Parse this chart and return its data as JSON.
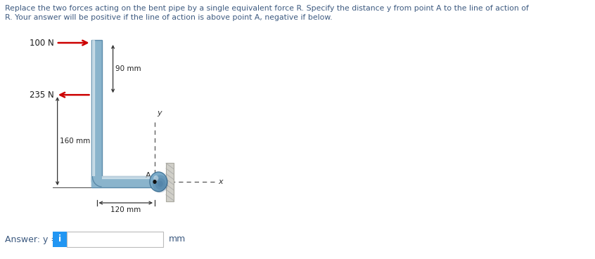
{
  "title_line1": "Replace the two forces acting on the bent pipe by a single equivalent force R. Specify the distance y from point A to the line of action of",
  "title_line2": "R. Your answer will be positive if the line of action is above point A, negative if below.",
  "title_color": "#3d5a80",
  "force1_label": "100 N",
  "force2_label": "235 N",
  "dim1_label": "90 mm",
  "dim2_label": "160 mm",
  "dim3_label": "120 mm",
  "answer_label": "Answer: y =",
  "mm_label": "mm",
  "force_color": "#cc0000",
  "pipe_fill": "#8ab4cc",
  "pipe_edge": "#5a8aaa",
  "pipe_light": "#c0d8e8",
  "wall_fill": "#d0cfc8",
  "wall_edge": "#aaa9a0",
  "ball_fill": "#7aaac8",
  "ball_edge": "#4a7a9b",
  "bg_color": "#ffffff",
  "answer_box_color": "#2196F3",
  "answer_box_text": "i",
  "A_label": "A",
  "y_label": "y",
  "x_label": "x"
}
